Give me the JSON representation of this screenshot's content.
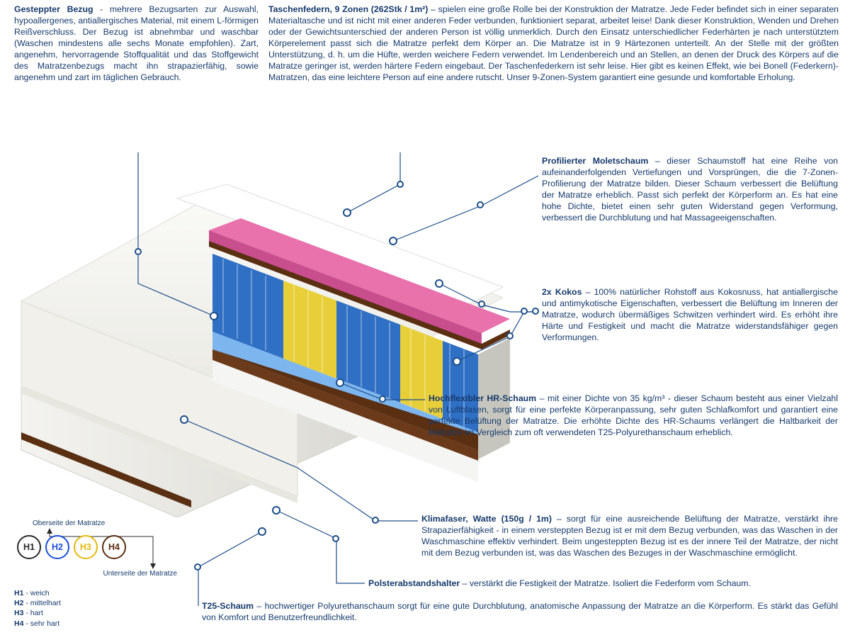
{
  "top": {
    "left": {
      "title": "Gesteppter Bezug",
      "sep": " - ",
      "text": "mehrere Bezugsarten zur Auswahl, hypoallergenes, antiallergisches Material, mit einem L-förmigen Reißverschluss. Der Bezug ist abnehmbar  und waschbar (Waschen mindestens alle sechs Monate empfohlen). Zart, angenehm, hervorragende Stoffqualität und das Stoffgewicht des Matratzenbezugs macht ihn strapazierfähig, sowie angenehm und zart im täglichen Gebrauch."
    },
    "right": {
      "title": "Taschenfedern, 9 Zonen (262Stk / 1m²)",
      "sep": " – ",
      "text": "spielen eine große Rolle bei der Konstruktion der Matratze. Jede Feder befindet sich in einer separaten Materialtasche und ist nicht mit einer anderen Feder verbunden, funktioniert separat, arbeitet leise! Dank dieser Konstruktion, Wenden und Drehen oder der Gewichtsunterschied der anderen Person ist völlig unmerklich. Durch den Einsatz unterschiedlicher Federhärten je nach unterstütztem Körperelement passt sich die Matratze perfekt dem Körper an. Die Matratze ist in 9 Härtezonen unterteilt. An der Stelle mit der größten Unterstützung, d. h. um die Hüfte, werden weichere Federn verwendet. Im Lendenbereich und an Stellen, an denen der Druck des Körpers auf die Matratze geringer ist, werden härtere Federn eingebaut. Der Taschenfederkern ist sehr leise. Hier gibt es keinen Effekt, wie bei Bonell (Federkern)- Matratzen, das eine leichtere Person auf eine andere rutscht. Unser 9-Zonen-System garantiert eine gesunde und komfortable Erholung."
    }
  },
  "sections": {
    "molet": {
      "title": "Profilierter Moletschaum",
      "sep": " – ",
      "text": "dieser Schaumstoff hat eine Reihe von aufeinanderfolgenden Vertiefungen und Vorsprüngen, die die 7-Zonen-Profilierung der Matratze bilden. Dieser Schaum verbessert die Belüftung der Matratze erheblich. Passt sich perfekt der Körperform an. Es hat eine hohe Dichte, bietet einen sehr guten Widerstand gegen Verformung, verbessert die Durchblutung und hat Massageeigenschaften."
    },
    "kokos": {
      "title": "2x Kokos",
      "sep": " – ",
      "text": "100% natürlicher Rohstoff aus Kokosnuss, hat antiallergische und antimykotische Eigenschaften, verbessert die Belüftung im Inneren der Matratze, wodurch übermäßiges Schwitzen verhindert wird. Es erhöht ihre Härte und Festigkeit und macht die Matratze widerstandsfähiger gegen Verformungen."
    },
    "hr": {
      "title": "Hochflexibler HR-Schaum",
      "sep": " – ",
      "text": "mit einer Dichte von 35 kg/m³ - dieser Schaum besteht aus einer Vielzahl von Luftblasen, sorgt für eine perfekte Körperanpassung, sehr guten Schlafkomfort und garantiert eine perfekte Belüftung der Matratze. Die erhöhte Dichte des HR-Schaums verlängert die Haltbarkeit der Matratze im Vergleich zum oft verwendeten T25-Polyurethanschaum erheblich."
    },
    "klima": {
      "title": "Klimafaser, Watte (150g / 1m)",
      "sep": " – ",
      "text": "sorgt für eine ausreichende Belüftung der Matratze, verstärkt ihre Strapazierfähigkeit - in einem versteppten Bezug ist er mit dem Bezug verbunden, was das Waschen in der Waschmaschine effektiv verhindert. Beim ungesteppten Bezug ist es der innere Teil der Matratze, der nicht mit dem Bezug verbunden ist, was das Waschen des Bezuges in der Waschmaschine ermöglicht."
    },
    "polster": {
      "title": "Polsterabstandshalter",
      "sep": " – ",
      "text": "verstärkt die Festigkeit der Matratze. Isoliert die Federform vom Schaum."
    },
    "t25": {
      "title": "T25-Schaum",
      "sep": " – ",
      "text": "hochwertiger Polyurethanschaum sorgt für eine gute Durchblutung, anatomische Anpassung der Matratze an die Körperform. Es stärkt das Gefühl von Komfort und Benutzerfreundlichkeit."
    }
  },
  "legend": {
    "top_label": "Oberseite der Matratze",
    "bottom_label": "Unterseite der Matratze",
    "items": [
      {
        "code": "H1",
        "desc": "weich",
        "color": "#2b2b2b"
      },
      {
        "code": "H2",
        "desc": "mittelhart",
        "color": "#1d4ed8"
      },
      {
        "code": "H3",
        "desc": "hart",
        "color": "#e3b80b"
      },
      {
        "code": "H4",
        "desc": "sehr hart",
        "color": "#5a2f12"
      }
    ]
  },
  "colors": {
    "text": "#163a6b",
    "line": "#1d4e89",
    "cover": "#f4f3ef",
    "molet": "#e86aa8",
    "kokos": "#5a2f12",
    "hr": "#7db6ee",
    "spring_blue": "#2f6fc4",
    "spring_yellow": "#e8cf3a",
    "t25": "#f2f2f2"
  }
}
